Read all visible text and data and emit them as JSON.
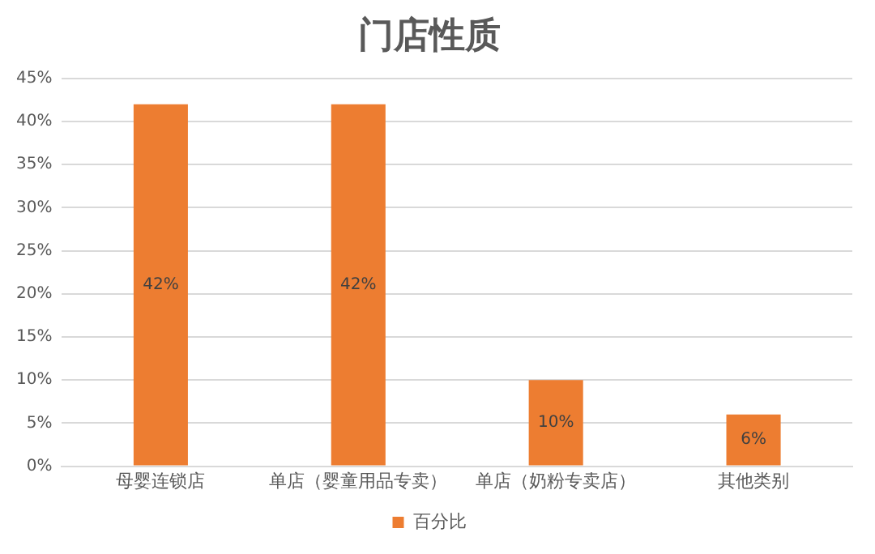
{
  "chart_data": {
    "type": "bar",
    "title": "门店性质",
    "categories": [
      "母婴连锁店",
      "单店（婴童用品专卖）",
      "单店（奶粉专卖店）",
      "其他类别"
    ],
    "series": [
      {
        "name": "百分比",
        "color": "#ed7d31",
        "values": [
          42,
          42,
          10,
          6
        ],
        "value_labels": [
          "42%",
          "42%",
          "10%",
          "6%"
        ]
      }
    ],
    "ylim": [
      0,
      45
    ],
    "yticks": [
      {
        "value": 0,
        "label": "0%"
      },
      {
        "value": 5,
        "label": "5%"
      },
      {
        "value": 10,
        "label": "10%"
      },
      {
        "value": 15,
        "label": "15%"
      },
      {
        "value": 20,
        "label": "20%"
      },
      {
        "value": 25,
        "label": "25%"
      },
      {
        "value": 30,
        "label": "30%"
      },
      {
        "value": 35,
        "label": "35%"
      },
      {
        "value": 40,
        "label": "40%"
      },
      {
        "value": 45,
        "label": "45%"
      }
    ],
    "grid": "y",
    "legend": "bottom"
  }
}
